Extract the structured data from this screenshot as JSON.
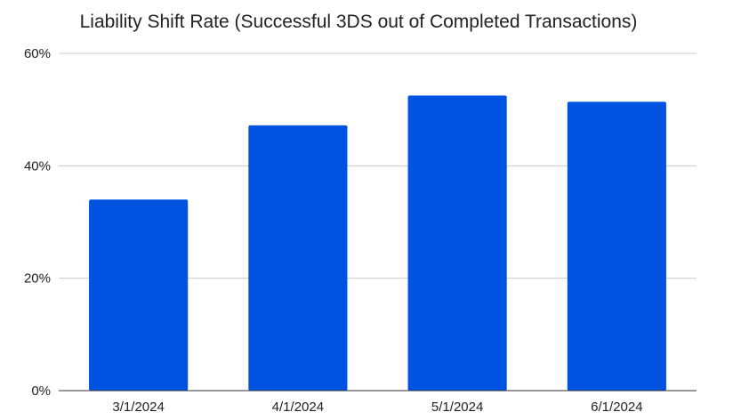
{
  "chart_data": {
    "type": "bar",
    "title": "Liability Shift Rate (Successful 3DS out of Completed Transactions)",
    "categories": [
      "3/1/2024",
      "4/1/2024",
      "5/1/2024",
      "6/1/2024"
    ],
    "values": [
      34.0,
      47.2,
      52.5,
      51.4
    ],
    "ylim": [
      0,
      60
    ],
    "yticks": [
      0,
      20,
      40,
      60
    ],
    "ytick_labels": [
      "0%",
      "20%",
      "40%",
      "60%"
    ],
    "xlabel": "",
    "ylabel": "",
    "grid": true,
    "legend": "none",
    "bar_color": "#0052e0"
  }
}
